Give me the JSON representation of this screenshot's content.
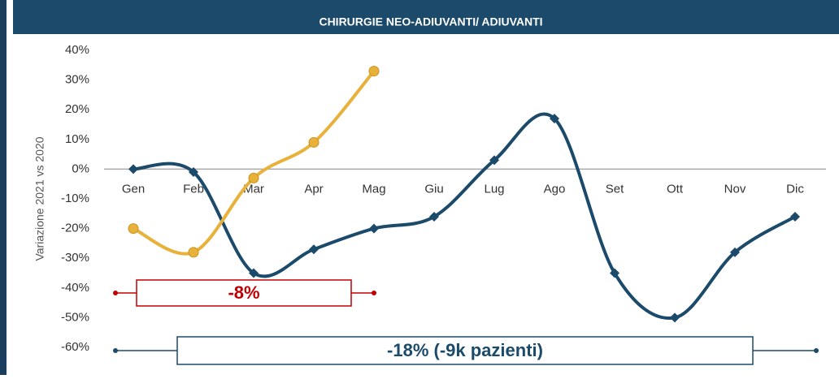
{
  "chart_data": {
    "type": "line",
    "title": "CHIRURGIE NEO-ADIUVANTI/ ADIUVANTI",
    "y_label": "Variazione 2021 vs 2020",
    "categories": [
      "Gen",
      "Feb",
      "Mar",
      "Apr",
      "Mag",
      "Giu",
      "Lug",
      "Ago",
      "Set",
      "Ott",
      "Nov",
      "Dic"
    ],
    "series": [
      {
        "color": "#1b4a6b",
        "marker": "diamond",
        "values": [
          0,
          -1,
          -35,
          -27,
          -20,
          -16,
          3,
          17,
          -35,
          -50,
          -28,
          -16
        ]
      },
      {
        "color": "#e8b13a",
        "marker": "circle",
        "values": [
          -20,
          -28,
          -3,
          9,
          33,
          null,
          null,
          null,
          null,
          null,
          null,
          null
        ]
      }
    ],
    "ylim": [
      -60,
      40
    ],
    "yticks": [
      {
        "value": 40,
        "label": "40%"
      },
      {
        "value": 30,
        "label": "30%"
      },
      {
        "value": 20,
        "label": "20%"
      },
      {
        "value": 10,
        "label": "10%"
      },
      {
        "value": 0,
        "label": "0%"
      },
      {
        "value": -10,
        "label": "-10%"
      },
      {
        "value": -20,
        "label": "-20%"
      },
      {
        "value": -30,
        "label": "-30%"
      },
      {
        "value": -40,
        "label": "-40%"
      },
      {
        "value": -50,
        "label": "-50%"
      },
      {
        "value": -60,
        "label": "-60%"
      }
    ],
    "annotations": [
      {
        "text": "-8%",
        "color": "#c00000"
      },
      {
        "text": "-18% (-9k pazienti)",
        "color": "#1b4a6b"
      }
    ]
  }
}
